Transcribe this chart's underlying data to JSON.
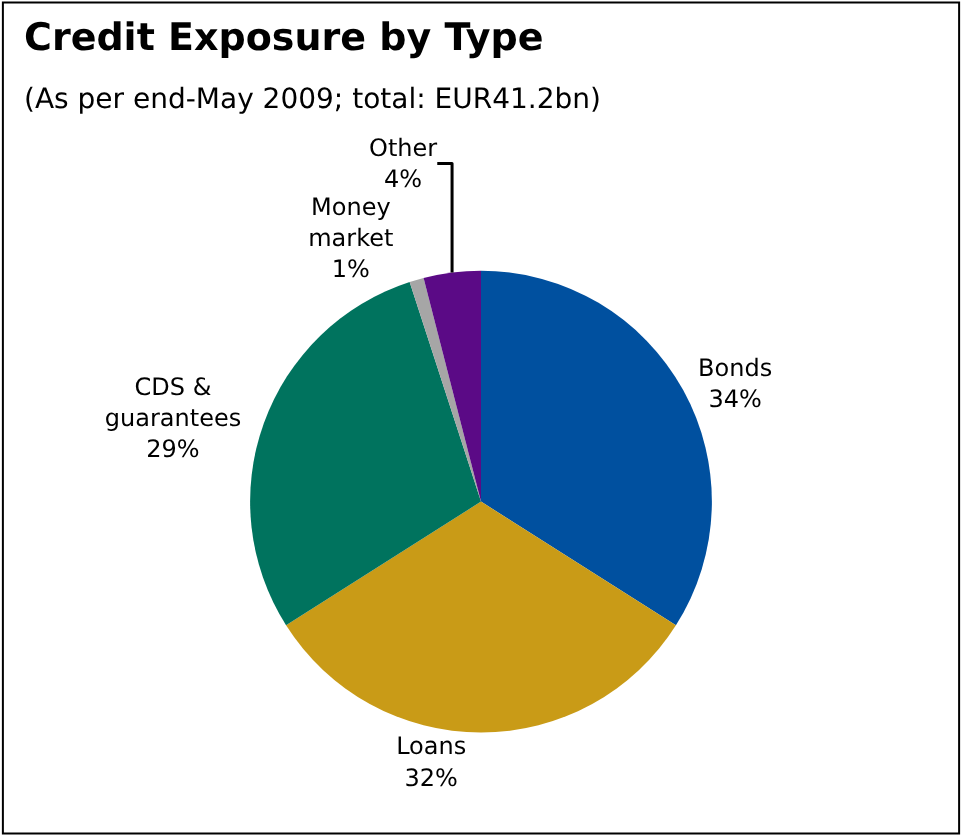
{
  "chart_data": {
    "type": "pie",
    "title": "Credit Exposure by Type",
    "subtitle": "(As per end-May 2009; total: EUR41.2bn)",
    "categories": [
      "Bonds",
      "Loans",
      "CDS & guarantees",
      "Money market",
      "Other"
    ],
    "values": [
      34,
      32,
      29,
      1,
      4
    ],
    "value_labels": [
      "34%",
      "32%",
      "29%",
      "1%",
      "4%"
    ],
    "colors": [
      "#00509f",
      "#c99b17",
      "#00735e",
      "#a6a6a6",
      "#5b0a86"
    ],
    "legend": false
  }
}
